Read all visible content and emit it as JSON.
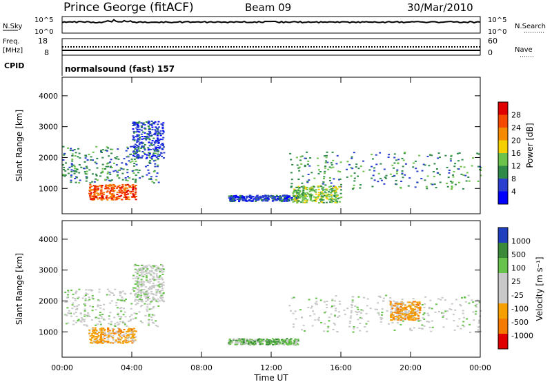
{
  "header": {
    "station": "Prince George (fitACF)",
    "beam": "Beam 09",
    "date": "30/Mar/2010"
  },
  "top_panels": {
    "nsky_label": "N.Sky",
    "nsky_ticks": [
      "10^5",
      "10^0"
    ],
    "nsearch_label": "N.Search",
    "nsearch_ticks": [
      "10^5",
      "10^0"
    ],
    "freq_label": "Freq.",
    "freq_unit": "[MHz]",
    "freq_ticks": [
      "18",
      "8"
    ],
    "nave_label": "Nave",
    "nave_ticks": [
      "60",
      "0"
    ],
    "cpid_label": "CPID",
    "cpid_text": "normalsound (fast) 157"
  },
  "chart_data": [
    {
      "type": "heatmap",
      "panel": "power",
      "title": "",
      "xlabel": "",
      "ylabel": "Slant Range [km]",
      "colorbar_label": "Power [dB]",
      "x_ticks": [
        "00:00",
        "04:00",
        "08:00",
        "12:00",
        "16:00",
        "20:00",
        "00:00"
      ],
      "y_ticks": [
        1000,
        2000,
        3000,
        4000
      ],
      "xlim_hours": [
        0,
        24
      ],
      "ylim_km": [
        180,
        4600
      ],
      "colorbar_ticks": [
        "4",
        "8",
        "12",
        "16",
        "20",
        "24",
        "28"
      ],
      "colors": [
        "#0000ff",
        "#2a3fd0",
        "#2f8a4a",
        "#6cc24a",
        "#f5d000",
        "#f58a00",
        "#f54a00",
        "#e00000"
      ],
      "regions": [
        {
          "t0": 0.0,
          "t1": 5.5,
          "r0": 1200,
          "r1": 2400,
          "level": 2
        },
        {
          "t0": 1.5,
          "t1": 4.2,
          "r0": 650,
          "r1": 1150,
          "level": 6
        },
        {
          "t0": 4.0,
          "t1": 5.8,
          "r0": 2000,
          "r1": 3200,
          "level": 1
        },
        {
          "t0": 9.5,
          "t1": 13.5,
          "r0": 600,
          "r1": 800,
          "level": 1
        },
        {
          "t0": 13.0,
          "t1": 24.0,
          "r0": 1000,
          "r1": 2200,
          "level": 2
        },
        {
          "t0": 13.2,
          "t1": 16.0,
          "r0": 550,
          "r1": 1100,
          "level": 3
        }
      ]
    },
    {
      "type": "heatmap",
      "panel": "velocity",
      "title": "",
      "xlabel": "Time UT",
      "ylabel": "Slant Range [km]",
      "colorbar_label": "Velocity [m s⁻¹]",
      "x_ticks": [
        "00:00",
        "04:00",
        "08:00",
        "12:00",
        "16:00",
        "20:00",
        "00:00"
      ],
      "y_ticks": [
        1000,
        2000,
        3000,
        4000
      ],
      "xlim_hours": [
        0,
        24
      ],
      "ylim_km": [
        180,
        4600
      ],
      "colorbar_ticks": [
        "1000",
        "500",
        "100",
        "25",
        "-25",
        "-100",
        "-500",
        "-1000"
      ],
      "colors": [
        "#1f3fbf",
        "#3a8a3a",
        "#66c24a",
        "#c8c8c8",
        "#c8c8c8",
        "#f5a000",
        "#f57a00",
        "#e00000"
      ],
      "regions": [
        {
          "t0": 0.0,
          "t1": 5.5,
          "r0": 1200,
          "r1": 2400,
          "level": 3
        },
        {
          "t0": 1.5,
          "t1": 4.2,
          "r0": 650,
          "r1": 1150,
          "level": 5
        },
        {
          "t0": 4.0,
          "t1": 5.8,
          "r0": 2000,
          "r1": 3200,
          "level": 3
        },
        {
          "t0": 9.5,
          "t1": 13.5,
          "r0": 600,
          "r1": 800,
          "level": 2
        },
        {
          "t0": 13.0,
          "t1": 24.0,
          "r0": 1000,
          "r1": 2200,
          "level": 3
        },
        {
          "t0": 18.8,
          "t1": 20.5,
          "r0": 1400,
          "r1": 2000,
          "level": 5
        }
      ]
    }
  ]
}
